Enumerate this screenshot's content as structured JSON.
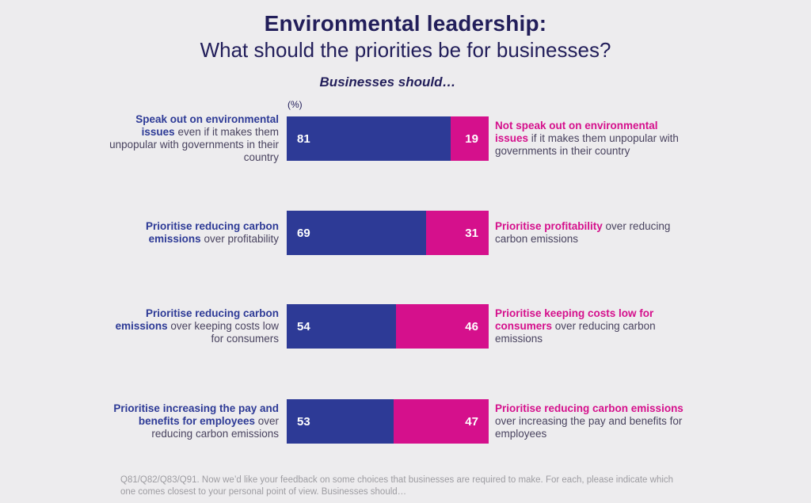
{
  "title": {
    "line1": "Environmental leadership:",
    "line2": "What should the priorities be for businesses?"
  },
  "subtitle": "Businesses should…",
  "unit_label": "(%)",
  "footnote": "Q81/Q82/Q83/Q91. Now we’d like your feedback on some choices that businesses are required to make. For each, please indicate which one comes closest to your personal point of view. Businesses should…",
  "colors": {
    "background": "#edecee",
    "title_navy": "#221e5a",
    "bar_blue": "#2d3a96",
    "bar_pink": "#d5108c",
    "body_text": "#49435f",
    "footnote_gray": "#9d9ca1",
    "value_text": "#ffffff"
  },
  "chart_data": {
    "type": "bar",
    "orientation": "horizontal-stacked",
    "title": "Environmental leadership: What should the priorities be for businesses?",
    "subtitle": "Businesses should…",
    "unit": "%",
    "xlim": [
      0,
      100
    ],
    "series": [
      {
        "name": "left-option",
        "color": "#2d3a96"
      },
      {
        "name": "right-option",
        "color": "#d5108c"
      }
    ],
    "rows": [
      {
        "left_bold": "Speak out on environmental issues",
        "left_rest": "even if it makes them unpopular with governments in their country",
        "left_value": 81,
        "left_value_label": "81",
        "right_value": 19,
        "right_value_label": "19",
        "right_bold": "Not speak out on environmental issues",
        "right_rest": "if it makes them unpopular with governments in their country"
      },
      {
        "left_bold": "Prioritise reducing carbon emissions",
        "left_rest": "over profitability",
        "left_value": 69,
        "left_value_label": "69",
        "right_value": 31,
        "right_value_label": "31",
        "right_bold": "Prioritise profitability",
        "right_rest": "over reducing carbon emissions"
      },
      {
        "left_bold": "Prioritise reducing carbon emissions",
        "left_rest": "over keeping costs low for consumers",
        "left_value": 54,
        "left_value_label": "54",
        "right_value": 46,
        "right_value_label": "46",
        "right_bold": "Prioritise keeping costs low for consumers",
        "right_rest": "over reducing carbon emissions"
      },
      {
        "left_bold": "Prioritise increasing the pay and benefits for employees",
        "left_rest": "over reducing carbon emissions",
        "left_value": 53,
        "left_value_label": "53",
        "right_value": 47,
        "right_value_label": "47",
        "right_bold": "Prioritise reducing carbon emissions",
        "right_rest": "over increasing the pay and benefits for employees"
      }
    ]
  }
}
